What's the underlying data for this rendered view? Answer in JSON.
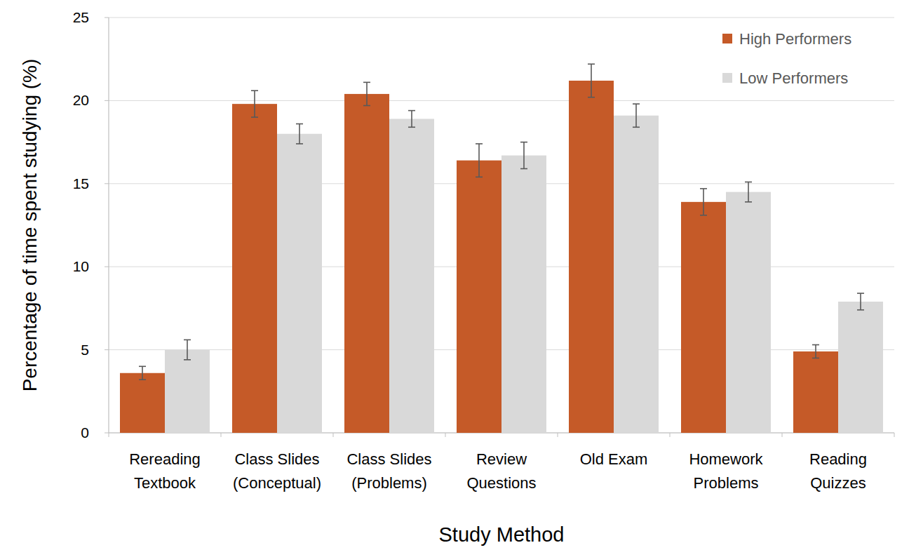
{
  "chart_data": {
    "type": "bar",
    "x_label": "Study Method",
    "y_label": "Percentage of time spent studying (%)",
    "categories": [
      "Rereading\nTextbook",
      "Class Slides\n(Conceptual)",
      "Class Slides\n(Problems)",
      "Review\nQuestions",
      "Old Exam",
      "Homework\nProblems",
      "Reading\nQuizzes"
    ],
    "series": [
      {
        "name": "High Performers",
        "color": "#c55a28",
        "values": [
          3.6,
          19.8,
          20.4,
          16.4,
          21.2,
          13.9,
          4.9
        ],
        "errors": [
          0.4,
          0.8,
          0.7,
          1.0,
          1.0,
          0.8,
          0.4
        ]
      },
      {
        "name": "Low Performers",
        "color": "#d9d9d9",
        "values": [
          5.0,
          18.0,
          18.9,
          16.7,
          19.1,
          14.5,
          7.9
        ],
        "errors": [
          0.6,
          0.6,
          0.5,
          0.8,
          0.7,
          0.6,
          0.5
        ]
      }
    ],
    "ylim": [
      0,
      25
    ],
    "yticks": [
      0,
      5,
      10,
      15,
      20,
      25
    ],
    "grid": true,
    "legend": "upper right"
  }
}
